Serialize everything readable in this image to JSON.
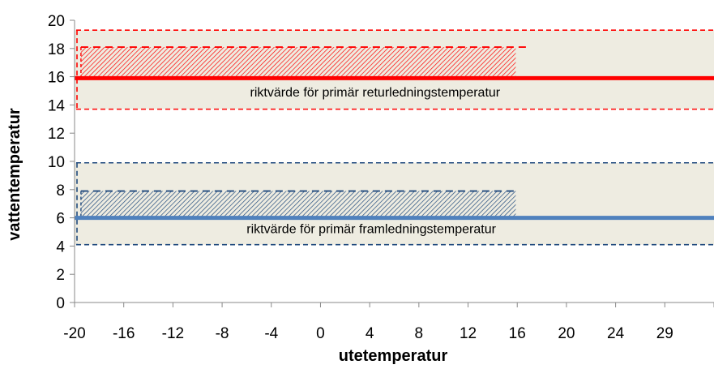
{
  "chart_data": {
    "type": "line",
    "xlabel": "utetemperatur",
    "ylabel": "vattentemperatur",
    "x_tick_labels": [
      "-20",
      "-16",
      "-12",
      "-8",
      "-4",
      "0",
      "4",
      "8",
      "12",
      "16",
      "20",
      "24",
      "29"
    ],
    "xlim": [
      -20,
      30
    ],
    "ylim": [
      0,
      20
    ],
    "y_ticks": [
      0,
      2,
      4,
      6,
      8,
      10,
      12,
      14,
      16,
      18,
      20
    ],
    "grid": false,
    "series": [
      {
        "key": "return",
        "color": "#ff0000",
        "x": [
          -20,
          30
        ],
        "y": [
          15.9,
          15.9
        ]
      },
      {
        "key": "supply",
        "color": "#4f81bd",
        "x": [
          -20,
          30
        ],
        "y": [
          6.0,
          6.0
        ]
      }
    ],
    "bands": [
      {
        "key": "return-band",
        "x": [
          -20,
          30
        ],
        "y": [
          13.7,
          19.3
        ],
        "fill": "#eeece1",
        "edge_color": "#ff0000",
        "line_x_end": 30
      },
      {
        "key": "supply-band",
        "x": [
          -20,
          30
        ],
        "y": [
          4.1,
          9.9
        ],
        "fill": "#eeece1",
        "edge_color": "#1f497d",
        "line_x_end": 30
      }
    ],
    "hatched_boxes": [
      {
        "key": "return-hatch",
        "x": [
          -19.5,
          14.5
        ],
        "y": [
          15.9,
          18.1
        ],
        "color": "#ff0000",
        "top_line_x_end": 15.5
      },
      {
        "key": "supply-hatch",
        "x": [
          -19.5,
          14.5
        ],
        "y": [
          6.0,
          7.9
        ],
        "color": "#1f497d",
        "top_line_x_end": 14.5
      }
    ],
    "annotations": [
      {
        "key": "return-note",
        "text": "riktvärde för primär returledningstemperatur",
        "x": 3.5,
        "y": 14.6
      },
      {
        "key": "supply-note",
        "text": "riktvärde för primär framledningstemperatur",
        "x": 3.2,
        "y": 4.9
      }
    ]
  }
}
